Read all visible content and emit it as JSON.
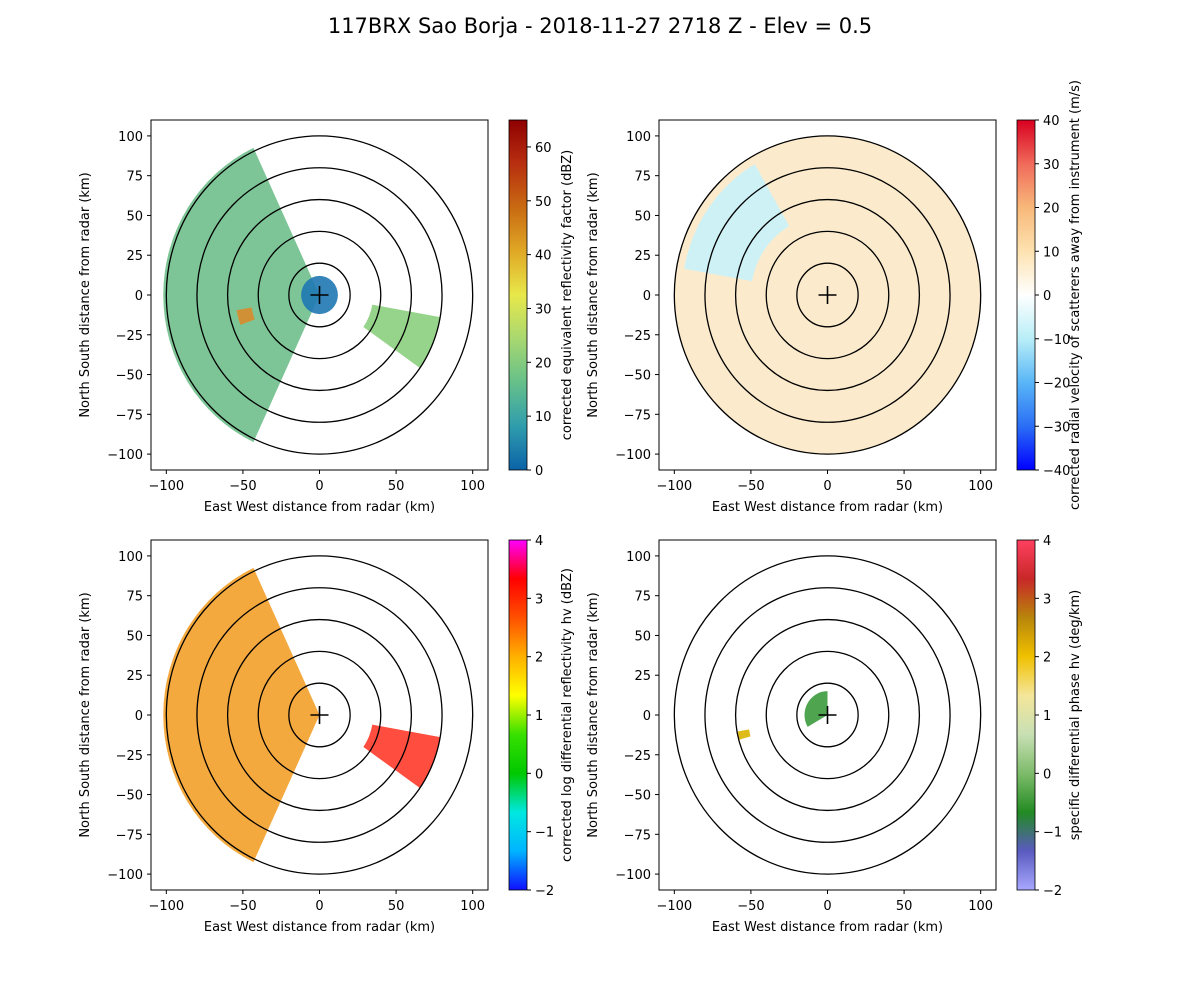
{
  "figure": {
    "title": "117BRX Sao Borja - 2018-11-27 2718 Z -  Elev = 0.5"
  },
  "chart_data": [
    {
      "type": "heatmap",
      "field": "reflectivity",
      "xlabel": "East West distance from radar (km)",
      "ylabel": "North South distance from radar (km)",
      "xlim": [
        -110,
        110
      ],
      "ylim": [
        -110,
        110
      ],
      "xticks": [
        -100,
        -50,
        0,
        50,
        100
      ],
      "yticks": [
        -100,
        -75,
        -50,
        -25,
        0,
        25,
        50,
        75,
        100
      ],
      "range_rings_km": [
        20,
        40,
        60,
        80,
        100
      ],
      "colorbar": {
        "label": "corrected equivalent reflectivity factor (dBZ)",
        "range": [
          0,
          65
        ],
        "ticks": [
          0,
          10,
          20,
          30,
          40,
          50,
          60
        ],
        "colors": [
          "#0b62a8",
          "#2f9dad",
          "#66c08a",
          "#a8d870",
          "#e8e84a",
          "#e0a825",
          "#c86a12",
          "#b82f10",
          "#8e0000"
        ]
      },
      "echo_regions": [
        {
          "name": "main-sector",
          "azimuth_deg": [
            205,
            335
          ],
          "range_km": [
            0,
            102
          ],
          "value_dbz": 15,
          "color": "#6fbf8b"
        },
        {
          "name": "near-field",
          "azimuth_deg": [
            0,
            360
          ],
          "range_km": [
            0,
            12
          ],
          "value_dbz": 5,
          "color": "#1f78b4"
        },
        {
          "name": "east-cells",
          "azimuth_deg": [
            100,
            125
          ],
          "range_km": [
            35,
            80
          ],
          "value_dbz": 20,
          "color": "#8ccf7e"
        },
        {
          "name": "core",
          "azimuth_deg": [
            250,
            260
          ],
          "range_km": [
            45,
            55
          ],
          "value_dbz": 48,
          "color": "#d9892a"
        }
      ]
    },
    {
      "type": "heatmap",
      "field": "velocity",
      "xlabel": "East West distance from radar (km)",
      "ylabel": "North South distance from radar (km)",
      "xlim": [
        -110,
        110
      ],
      "ylim": [
        -110,
        110
      ],
      "xticks": [
        -100,
        -50,
        0,
        50,
        100
      ],
      "yticks": [
        -100,
        -75,
        -50,
        -25,
        0,
        25,
        50,
        75,
        100
      ],
      "range_rings_km": [
        20,
        40,
        60,
        80,
        100
      ],
      "colorbar": {
        "label": "corrected radial velocity of scatterers away from instrument (m/s)",
        "range": [
          -40,
          40
        ],
        "ticks": [
          -40,
          -30,
          -20,
          -10,
          0,
          10,
          20,
          30,
          40
        ],
        "colors": [
          "#0000ff",
          "#2a6ef5",
          "#59b6f7",
          "#b8eef7",
          "#ffffff",
          "#fde2b0",
          "#f8b87a",
          "#f06a5a",
          "#d90020"
        ]
      },
      "echo_regions": [
        {
          "name": "light-wind-field",
          "azimuth_deg": [
            0,
            360
          ],
          "range_km": [
            0,
            100
          ],
          "value_ms": 4,
          "color": "#fbe9c6"
        },
        {
          "name": "approaching-patches",
          "azimuth_deg": [
            280,
            330
          ],
          "range_km": [
            50,
            95
          ],
          "value_ms": -6,
          "color": "#c9f2fb"
        }
      ]
    },
    {
      "type": "heatmap",
      "field": "differential_reflectivity",
      "xlabel": "East West distance from radar (km)",
      "ylabel": "North South distance from radar (km)",
      "xlim": [
        -110,
        110
      ],
      "ylim": [
        -110,
        110
      ],
      "xticks": [
        -100,
        -50,
        0,
        50,
        100
      ],
      "yticks": [
        -100,
        -75,
        -50,
        -25,
        0,
        25,
        50,
        75,
        100
      ],
      "range_rings_km": [
        20,
        40,
        60,
        80,
        100
      ],
      "colorbar": {
        "label": "corrected log differential reflectivity hv (dBZ)",
        "range": [
          -2,
          4
        ],
        "ticks": [
          -2,
          -1,
          0,
          1,
          2,
          3,
          4
        ],
        "colors": [
          "#1010ff",
          "#00b4ff",
          "#00e8e0",
          "#00c800",
          "#38e000",
          "#ffff00",
          "#ffb000",
          "#ff5000",
          "#ff0000",
          "#ff00ff"
        ]
      },
      "echo_regions": [
        {
          "name": "main-sector",
          "azimuth_deg": [
            205,
            335
          ],
          "range_km": [
            0,
            102
          ],
          "value_db": 1.8,
          "color": "#f3a02a"
        },
        {
          "name": "east-cells",
          "azimuth_deg": [
            100,
            125
          ],
          "range_km": [
            35,
            80
          ],
          "value_db": 3.2,
          "color": "#ff3a2a"
        }
      ]
    },
    {
      "type": "heatmap",
      "field": "specific_differential_phase",
      "xlabel": "East West distance from radar (km)",
      "ylabel": "North South distance from radar (km)",
      "xlim": [
        -110,
        110
      ],
      "ylim": [
        -110,
        110
      ],
      "xticks": [
        -100,
        -50,
        0,
        50,
        100
      ],
      "yticks": [
        -100,
        -75,
        -50,
        -25,
        0,
        25,
        50,
        75,
        100
      ],
      "range_rings_km": [
        20,
        40,
        60,
        80,
        100
      ],
      "colorbar": {
        "label": "specific differential phase hv (deg/km)",
        "range": [
          -2,
          4
        ],
        "ticks": [
          -2,
          -1,
          0,
          1,
          2,
          3,
          4
        ],
        "colors": [
          "#a8a8ff",
          "#5a5ac0",
          "#228b22",
          "#7dbb6a",
          "#c8e0b4",
          "#f4e69a",
          "#f0c000",
          "#b8860b",
          "#c82828",
          "#ff4060"
        ]
      },
      "echo_regions": [
        {
          "name": "near-radar-cluster",
          "azimuth_deg": [
            240,
            360
          ],
          "range_km": [
            0,
            15
          ],
          "value_deg_km": 0.3,
          "color": "#3c9a3c"
        },
        {
          "name": "west-spot",
          "azimuth_deg": [
            255,
            260
          ],
          "range_km": [
            52,
            60
          ],
          "value_deg_km": 2.2,
          "color": "#d9b400"
        }
      ]
    }
  ]
}
